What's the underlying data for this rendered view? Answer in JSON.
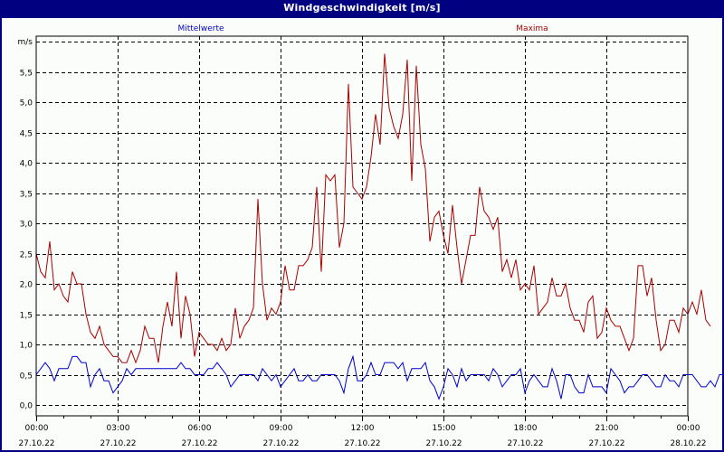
{
  "window": {
    "title": "Windgeschwindigkeit [m/s]"
  },
  "legend": {
    "mean_label": "Mittelwerte",
    "max_label": "Maxima"
  },
  "colors": {
    "titlebar": "#000080",
    "background": "#fbfdfb",
    "mean_series": "#0000cc",
    "max_series": "#aa0000",
    "grid": "#000000"
  },
  "chart_data": {
    "type": "line",
    "title": "Windgeschwindigkeit [m/s]",
    "xlabel": "",
    "ylabel": "m/s",
    "ylim": [
      0.0,
      5.8
    ],
    "grid": true,
    "legend_position": "top",
    "y_ticks": [
      "0,0",
      "0,5",
      "1,0",
      "1,5",
      "2,0",
      "2,5",
      "3,0",
      "3,5",
      "4,0",
      "4,5",
      "5,0",
      "5,5"
    ],
    "y_unit_label": "m/s",
    "x_ticks": [
      {
        "time": "00:00",
        "date": "27.10.22"
      },
      {
        "time": "03:00",
        "date": "27.10.22"
      },
      {
        "time": "06:00",
        "date": "27.10.22"
      },
      {
        "time": "09:00",
        "date": "27.10.22"
      },
      {
        "time": "12:00",
        "date": "27.10.22"
      },
      {
        "time": "15:00",
        "date": "27.10.22"
      },
      {
        "time": "18:00",
        "date": "27.10.22"
      },
      {
        "time": "21:00",
        "date": "27.10.22"
      },
      {
        "time": "00:00",
        "date": "28.10.22"
      }
    ],
    "x_interval_minutes": 10,
    "series": [
      {
        "name": "Mittelwerte",
        "color": "#0000cc",
        "values": [
          0.5,
          0.6,
          0.7,
          0.6,
          0.4,
          0.6,
          0.6,
          0.6,
          0.8,
          0.8,
          0.7,
          0.7,
          0.3,
          0.5,
          0.6,
          0.4,
          0.4,
          0.2,
          0.3,
          0.4,
          0.6,
          0.5,
          0.6,
          0.6,
          0.6,
          0.6,
          0.6,
          0.6,
          0.6,
          0.6,
          0.6,
          0.6,
          0.7,
          0.6,
          0.6,
          0.5,
          0.5,
          0.5,
          0.6,
          0.6,
          0.7,
          0.6,
          0.5,
          0.3,
          0.4,
          0.5,
          0.5,
          0.5,
          0.5,
          0.4,
          0.6,
          0.5,
          0.4,
          0.5,
          0.3,
          0.4,
          0.5,
          0.6,
          0.4,
          0.4,
          0.5,
          0.4,
          0.4,
          0.5,
          0.5,
          0.5,
          0.5,
          0.4,
          0.2,
          0.6,
          0.8,
          0.4,
          0.4,
          0.5,
          0.7,
          0.5,
          0.5,
          0.7,
          0.7,
          0.7,
          0.6,
          0.7,
          0.4,
          0.6,
          0.6,
          0.6,
          0.7,
          0.4,
          0.3,
          0.1,
          0.3,
          0.6,
          0.5,
          0.3,
          0.6,
          0.4,
          0.5,
          0.5,
          0.5,
          0.5,
          0.4,
          0.6,
          0.5,
          0.3,
          0.4,
          0.5,
          0.5,
          0.6,
          0.2,
          0.4,
          0.5,
          0.4,
          0.3,
          0.3,
          0.6,
          0.4,
          0.1,
          0.5,
          0.5,
          0.3,
          0.2,
          0.2,
          0.5,
          0.3,
          0.3,
          0.3,
          0.2,
          0.6,
          0.5,
          0.4,
          0.2,
          0.3,
          0.3,
          0.4,
          0.5,
          0.5,
          0.4,
          0.3,
          0.3,
          0.5,
          0.4,
          0.4,
          0.3,
          0.5,
          0.5,
          0.5,
          0.4,
          0.3,
          0.3,
          0.4,
          0.3,
          0.5,
          0.5,
          0.5,
          0.4,
          0.5,
          0.3,
          0.2,
          0.5,
          0.4,
          0.6,
          0.5,
          0.5,
          0.4
        ]
      },
      {
        "name": "Maxima",
        "color": "#aa0000",
        "values": [
          2.5,
          2.2,
          2.1,
          2.7,
          1.9,
          2.0,
          1.8,
          1.7,
          2.2,
          2.0,
          2.0,
          1.5,
          1.2,
          1.1,
          1.3,
          1.0,
          0.9,
          0.8,
          0.8,
          0.7,
          0.7,
          0.9,
          0.7,
          0.9,
          1.3,
          1.1,
          1.1,
          0.7,
          1.3,
          1.7,
          1.3,
          2.2,
          1.1,
          1.8,
          1.5,
          0.8,
          1.2,
          1.1,
          1.0,
          1.0,
          0.9,
          1.1,
          0.9,
          1.0,
          1.6,
          1.1,
          1.3,
          1.4,
          1.6,
          3.4,
          2.0,
          1.4,
          1.6,
          1.5,
          1.7,
          2.3,
          1.9,
          1.9,
          2.3,
          2.3,
          2.4,
          2.6,
          3.6,
          2.2,
          3.8,
          3.7,
          3.8,
          2.6,
          3.0,
          5.3,
          3.6,
          3.5,
          3.4,
          3.6,
          4.1,
          4.8,
          4.3,
          5.8,
          4.9,
          4.6,
          4.4,
          4.8,
          5.7,
          3.7,
          5.6,
          4.3,
          3.9,
          2.7,
          3.1,
          3.2,
          2.8,
          2.5,
          3.3,
          2.6,
          2.0,
          2.4,
          2.8,
          2.8,
          3.6,
          3.2,
          3.1,
          2.9,
          3.1,
          2.2,
          2.4,
          2.1,
          2.4,
          1.9,
          2.0,
          1.9,
          2.3,
          1.5,
          1.6,
          1.7,
          2.1,
          1.8,
          1.8,
          2.0,
          1.6,
          1.4,
          1.4,
          1.2,
          1.7,
          1.8,
          1.1,
          1.2,
          1.6,
          1.4,
          1.3,
          1.3,
          1.1,
          0.9,
          1.1,
          2.3,
          2.3,
          1.8,
          2.1,
          1.4,
          0.9,
          1.0,
          1.4,
          1.4,
          1.2,
          1.6,
          1.5,
          1.7,
          1.5,
          1.9,
          1.4,
          1.3
        ]
      }
    ]
  }
}
